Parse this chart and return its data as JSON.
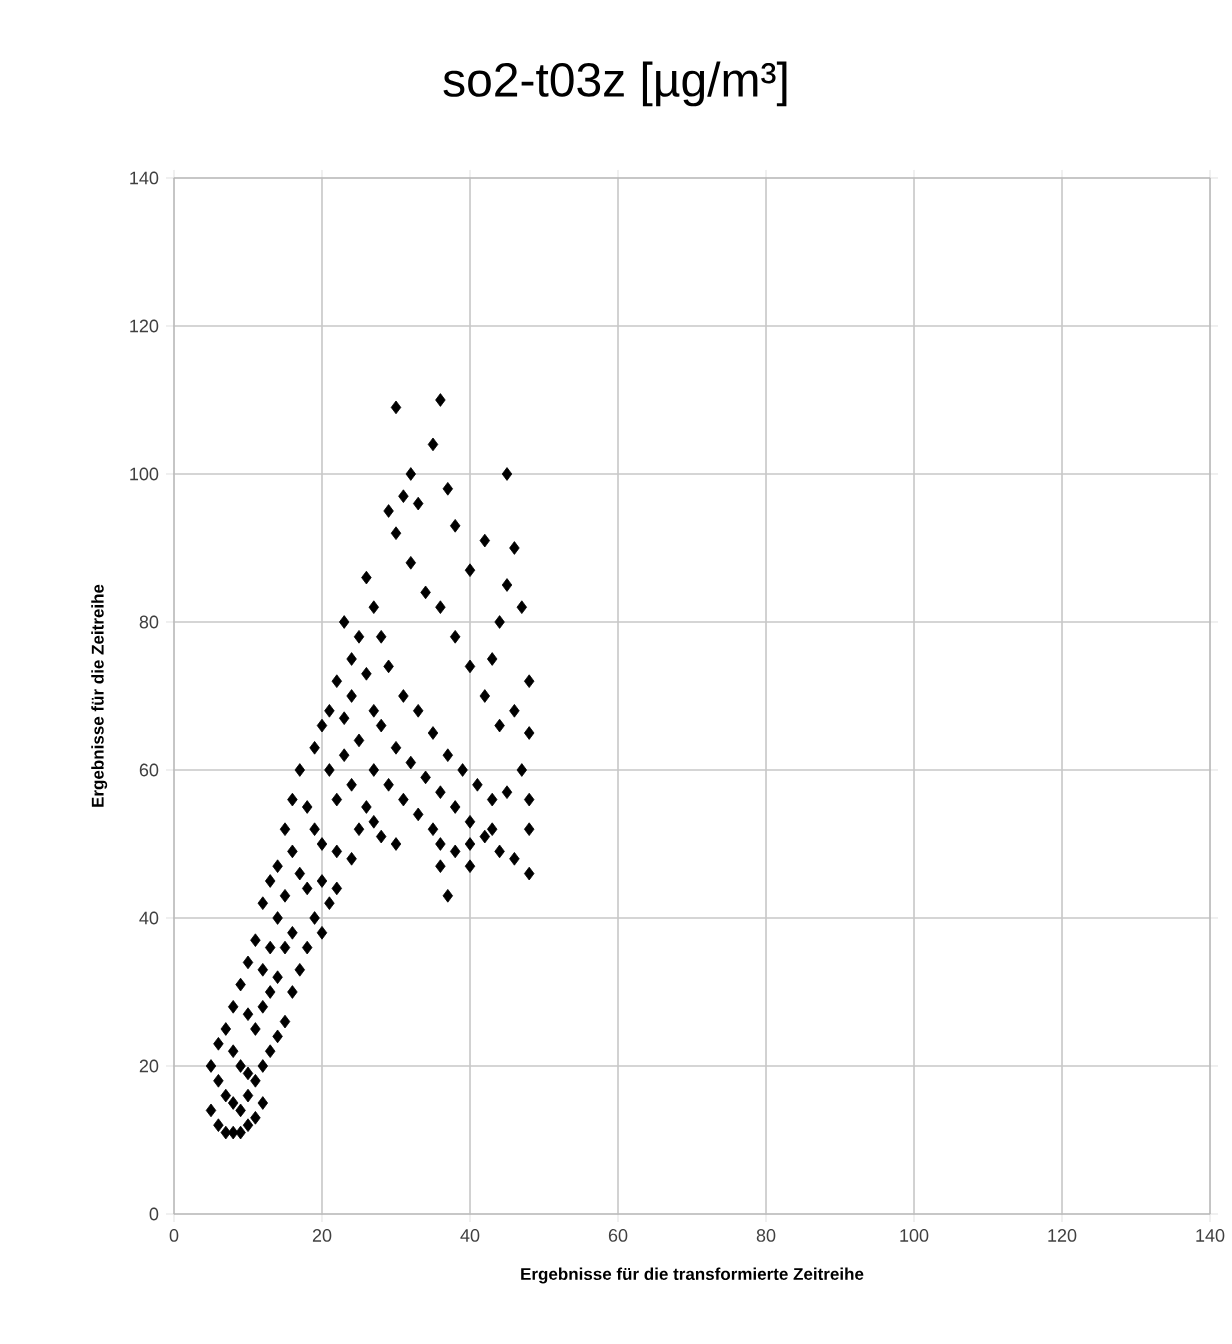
{
  "chart_data": {
    "type": "scatter",
    "title": "so2-t03z [µg/m³]",
    "xlabel": "Ergebnisse für die transformierte Zeitreihe",
    "ylabel": "Ergebnisse für die Zeitreihe",
    "xlim": [
      0,
      140
    ],
    "ylim": [
      0,
      140
    ],
    "xticks": [
      0,
      20,
      40,
      60,
      80,
      100,
      120,
      140
    ],
    "yticks": [
      0,
      20,
      40,
      60,
      80,
      100,
      120,
      140
    ],
    "grid": true,
    "marker": "diamond",
    "series": [
      {
        "color": "#000000",
        "x": [
          5,
          6,
          7,
          8,
          9,
          10,
          11,
          12,
          5,
          6,
          7,
          8,
          9,
          10,
          6,
          7,
          8,
          9,
          10,
          11,
          12,
          13,
          14,
          15,
          8,
          9,
          10,
          11,
          12,
          13,
          14,
          16,
          17,
          10,
          11,
          12,
          13,
          14,
          15,
          16,
          18,
          19,
          20,
          12,
          13,
          14,
          15,
          16,
          17,
          18,
          20,
          21,
          22,
          15,
          16,
          17,
          18,
          19,
          20,
          22,
          24,
          25,
          19,
          20,
          21,
          22,
          23,
          24,
          26,
          27,
          28,
          30,
          21,
          22,
          23,
          24,
          25,
          27,
          29,
          31,
          33,
          35,
          36,
          38,
          40,
          24,
          25,
          26,
          27,
          28,
          30,
          32,
          34,
          36,
          38,
          40,
          42,
          44,
          46,
          48,
          23,
          27,
          26,
          28,
          29,
          31,
          33,
          35,
          37,
          39,
          41,
          43,
          45,
          47,
          48,
          48,
          48,
          48,
          46,
          44,
          42,
          40,
          38,
          36,
          34,
          32,
          30,
          29,
          31,
          32,
          30,
          36,
          35,
          33,
          37,
          38,
          40,
          42,
          46,
          45,
          47,
          45,
          43,
          44,
          37,
          36,
          40,
          43
        ],
        "values": [
          14,
          12,
          11,
          11,
          11,
          12,
          13,
          15,
          20,
          18,
          16,
          15,
          14,
          16,
          23,
          25,
          22,
          20,
          19,
          18,
          20,
          22,
          24,
          26,
          28,
          31,
          27,
          25,
          28,
          30,
          32,
          30,
          33,
          34,
          37,
          33,
          36,
          40,
          36,
          38,
          36,
          40,
          38,
          42,
          45,
          47,
          43,
          49,
          46,
          44,
          45,
          42,
          44,
          52,
          56,
          60,
          55,
          52,
          50,
          49,
          48,
          52,
          63,
          66,
          60,
          56,
          62,
          58,
          55,
          53,
          51,
          50,
          68,
          72,
          67,
          70,
          64,
          60,
          58,
          56,
          54,
          52,
          50,
          49,
          47,
          75,
          78,
          73,
          68,
          66,
          63,
          61,
          59,
          57,
          55,
          53,
          51,
          49,
          48,
          46,
          80,
          82,
          86,
          78,
          74,
          70,
          68,
          65,
          62,
          60,
          58,
          56,
          57,
          60,
          52,
          56,
          65,
          72,
          68,
          66,
          70,
          74,
          78,
          82,
          84,
          88,
          92,
          95,
          97,
          100,
          109,
          110,
          104,
          96,
          98,
          93,
          87,
          91,
          90,
          85,
          82,
          100,
          75,
          80,
          43,
          47,
          50,
          52
        ]
      }
    ]
  }
}
